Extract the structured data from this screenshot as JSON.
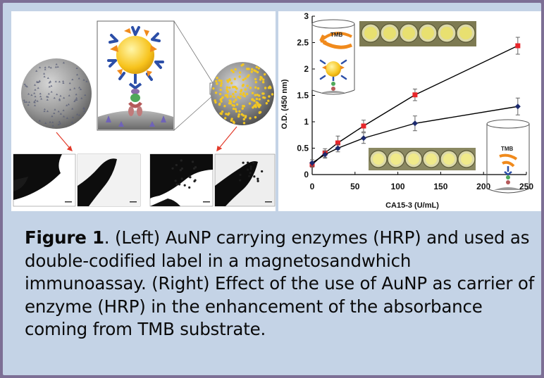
{
  "caption": {
    "label": "Figure 1",
    "text": ". (Left) AuNP carrying enzymes (HRP) and used as double-codified label in a magnetosandwhich immunoassay. (Right) Effect of the use of AuNP as carrier of enzyme (HRP) in the enhancement of the absorbance  coming from TMB substrate."
  },
  "left_figure": {
    "scale_bar_labels": [
      "",
      "",
      "",
      ""
    ]
  },
  "inset_labels": {
    "top": "TMB",
    "bottom": "TMB"
  },
  "colors": {
    "frame_border": "#7d6f95",
    "background": "#c4d3e6",
    "series_aunp": "#e8262a",
    "series_plain": "#1c2a6e",
    "arrow": "#e23b2b",
    "tmb_arrow": "#f08a1c"
  },
  "chart_data": {
    "type": "line",
    "xlabel": "CA15-3 (U/mL)",
    "ylabel": "O.D. (450 nm)",
    "xlim": [
      0,
      250
    ],
    "ylim": [
      0,
      3
    ],
    "xticks": [
      "0",
      "50",
      "100",
      "150",
      "200",
      "250"
    ],
    "yticks": [
      "0",
      "0.5",
      "1",
      "1.5",
      "2",
      "2.5",
      "3"
    ],
    "grid": false,
    "series": [
      {
        "marker": "square",
        "color": "#e8262a",
        "x": [
          0,
          15,
          30,
          60,
          120,
          240
        ],
        "y": [
          0.19,
          0.41,
          0.6,
          0.92,
          1.51,
          2.44
        ],
        "err": [
          0.05,
          0.08,
          0.13,
          0.11,
          0.11,
          0.16
        ]
      },
      {
        "marker": "diamond",
        "color": "#1c2a6e",
        "x": [
          0,
          15,
          30,
          60,
          120,
          240
        ],
        "y": [
          0.22,
          0.38,
          0.5,
          0.69,
          0.97,
          1.29
        ],
        "err": [
          0.06,
          0.07,
          0.07,
          0.1,
          0.14,
          0.16
        ]
      }
    ]
  }
}
